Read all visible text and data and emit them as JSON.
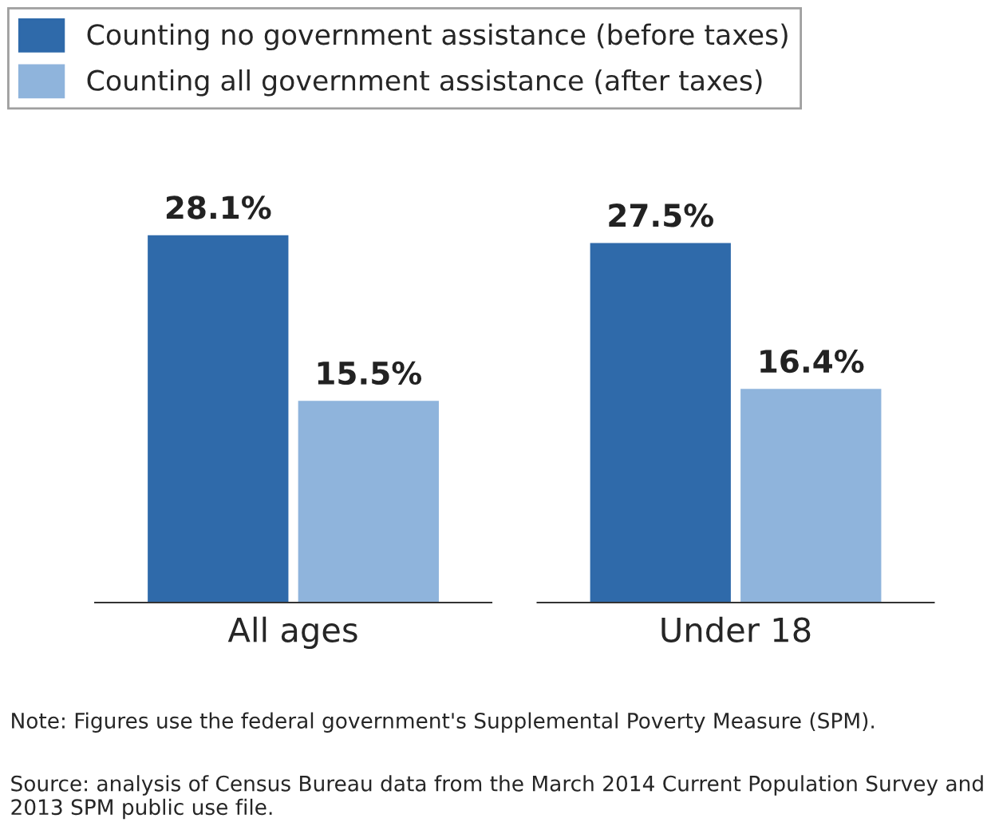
{
  "chart_data": {
    "type": "bar",
    "categories": [
      "All ages",
      "Under 18"
    ],
    "series": [
      {
        "name": "Counting no government assistance (before taxes)",
        "color": "#2f6aaa",
        "values": [
          28.1,
          27.5
        ],
        "value_labels": [
          "28.1%",
          "27.5%"
        ]
      },
      {
        "name": "Counting all government assistance (after taxes)",
        "color": "#8fb4dc",
        "values": [
          15.5,
          16.4
        ],
        "value_labels": [
          "15.5%",
          "16.4%"
        ]
      }
    ],
    "legend": "top",
    "annotations": [
      "Note: Figures use the federal government's Supplemental Poverty Measure (SPM).",
      "Source: analysis of Census Bureau data from the March 2014 Current Population Survey and 2013 SPM public use file."
    ]
  }
}
